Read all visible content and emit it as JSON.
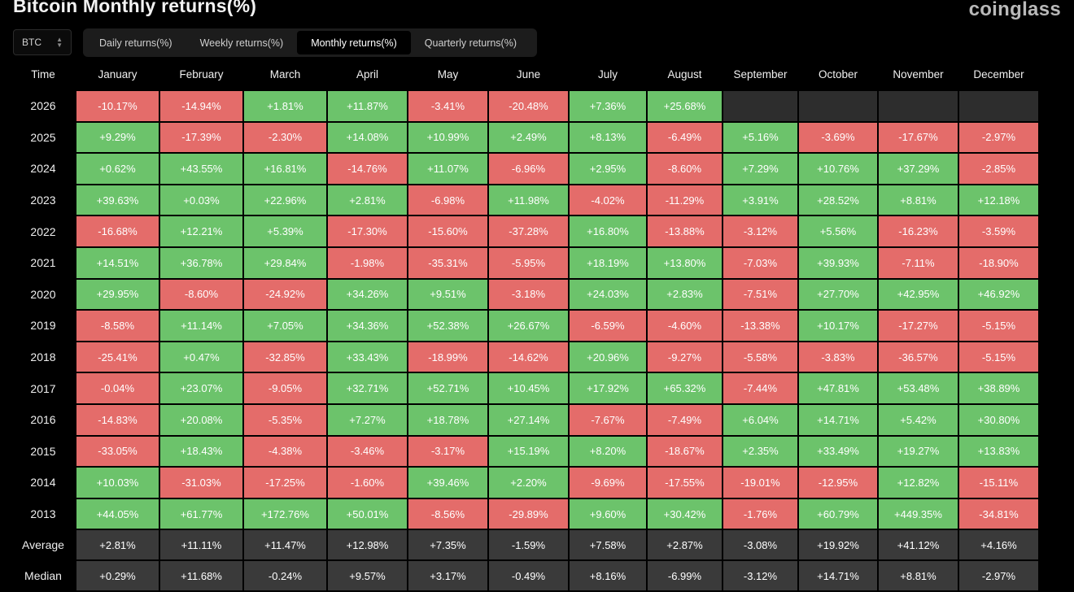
{
  "header": {
    "title": "Bitcoin Monthly returns(%)",
    "brand": "coinglass"
  },
  "asset_select": {
    "value": "BTC"
  },
  "tabs": [
    {
      "label": "Daily returns(%)",
      "active": false
    },
    {
      "label": "Weekly returns(%)",
      "active": false
    },
    {
      "label": "Monthly returns(%)",
      "active": true
    },
    {
      "label": "Quarterly returns(%)",
      "active": false
    }
  ],
  "table": {
    "time_header": "Time",
    "months": [
      "January",
      "February",
      "March",
      "April",
      "May",
      "June",
      "July",
      "August",
      "September",
      "October",
      "November",
      "December"
    ],
    "rows": [
      {
        "year": "2026",
        "values": [
          "-10.17%",
          "-14.94%",
          "+1.81%",
          "+11.87%",
          "-3.41%",
          "-20.48%",
          "+7.36%",
          "+25.68%",
          "",
          "",
          "",
          ""
        ]
      },
      {
        "year": "2025",
        "values": [
          "+9.29%",
          "-17.39%",
          "-2.30%",
          "+14.08%",
          "+10.99%",
          "+2.49%",
          "+8.13%",
          "-6.49%",
          "+5.16%",
          "-3.69%",
          "-17.67%",
          "-2.97%"
        ]
      },
      {
        "year": "2024",
        "values": [
          "+0.62%",
          "+43.55%",
          "+16.81%",
          "-14.76%",
          "+11.07%",
          "-6.96%",
          "+2.95%",
          "-8.60%",
          "+7.29%",
          "+10.76%",
          "+37.29%",
          "-2.85%"
        ]
      },
      {
        "year": "2023",
        "values": [
          "+39.63%",
          "+0.03%",
          "+22.96%",
          "+2.81%",
          "-6.98%",
          "+11.98%",
          "-4.02%",
          "-11.29%",
          "+3.91%",
          "+28.52%",
          "+8.81%",
          "+12.18%"
        ]
      },
      {
        "year": "2022",
        "values": [
          "-16.68%",
          "+12.21%",
          "+5.39%",
          "-17.30%",
          "-15.60%",
          "-37.28%",
          "+16.80%",
          "-13.88%",
          "-3.12%",
          "+5.56%",
          "-16.23%",
          "-3.59%"
        ]
      },
      {
        "year": "2021",
        "values": [
          "+14.51%",
          "+36.78%",
          "+29.84%",
          "-1.98%",
          "-35.31%",
          "-5.95%",
          "+18.19%",
          "+13.80%",
          "-7.03%",
          "+39.93%",
          "-7.11%",
          "-18.90%"
        ]
      },
      {
        "year": "2020",
        "values": [
          "+29.95%",
          "-8.60%",
          "-24.92%",
          "+34.26%",
          "+9.51%",
          "-3.18%",
          "+24.03%",
          "+2.83%",
          "-7.51%",
          "+27.70%",
          "+42.95%",
          "+46.92%"
        ]
      },
      {
        "year": "2019",
        "values": [
          "-8.58%",
          "+11.14%",
          "+7.05%",
          "+34.36%",
          "+52.38%",
          "+26.67%",
          "-6.59%",
          "-4.60%",
          "-13.38%",
          "+10.17%",
          "-17.27%",
          "-5.15%"
        ]
      },
      {
        "year": "2018",
        "values": [
          "-25.41%",
          "+0.47%",
          "-32.85%",
          "+33.43%",
          "-18.99%",
          "-14.62%",
          "+20.96%",
          "-9.27%",
          "-5.58%",
          "-3.83%",
          "-36.57%",
          "-5.15%"
        ]
      },
      {
        "year": "2017",
        "values": [
          "-0.04%",
          "+23.07%",
          "-9.05%",
          "+32.71%",
          "+52.71%",
          "+10.45%",
          "+17.92%",
          "+65.32%",
          "-7.44%",
          "+47.81%",
          "+53.48%",
          "+38.89%"
        ]
      },
      {
        "year": "2016",
        "values": [
          "-14.83%",
          "+20.08%",
          "-5.35%",
          "+7.27%",
          "+18.78%",
          "+27.14%",
          "-7.67%",
          "-7.49%",
          "+6.04%",
          "+14.71%",
          "+5.42%",
          "+30.80%"
        ]
      },
      {
        "year": "2015",
        "values": [
          "-33.05%",
          "+18.43%",
          "-4.38%",
          "-3.46%",
          "-3.17%",
          "+15.19%",
          "+8.20%",
          "-18.67%",
          "+2.35%",
          "+33.49%",
          "+19.27%",
          "+13.83%"
        ]
      },
      {
        "year": "2014",
        "values": [
          "+10.03%",
          "-31.03%",
          "-17.25%",
          "-1.60%",
          "+39.46%",
          "+2.20%",
          "-9.69%",
          "-17.55%",
          "-19.01%",
          "-12.95%",
          "+12.82%",
          "-15.11%"
        ]
      },
      {
        "year": "2013",
        "values": [
          "+44.05%",
          "+61.77%",
          "+172.76%",
          "+50.01%",
          "-8.56%",
          "-29.89%",
          "+9.60%",
          "+30.42%",
          "-1.76%",
          "+60.79%",
          "+449.35%",
          "-34.81%"
        ]
      }
    ],
    "summary": [
      {
        "label": "Average",
        "values": [
          "+2.81%",
          "+11.11%",
          "+11.47%",
          "+12.98%",
          "+7.35%",
          "-1.59%",
          "+7.58%",
          "+2.87%",
          "-3.08%",
          "+19.92%",
          "+41.12%",
          "+4.16%"
        ]
      },
      {
        "label": "Median",
        "values": [
          "+0.29%",
          "+11.68%",
          "-0.24%",
          "+9.57%",
          "+3.17%",
          "-0.49%",
          "+8.16%",
          "-6.99%",
          "-3.12%",
          "+14.71%",
          "+8.81%",
          "-2.97%"
        ]
      }
    ]
  },
  "colors": {
    "positive": "#6cc36b",
    "negative": "#e46c6a",
    "empty": "#2d2d2d",
    "summary": "#3a3a3a"
  }
}
